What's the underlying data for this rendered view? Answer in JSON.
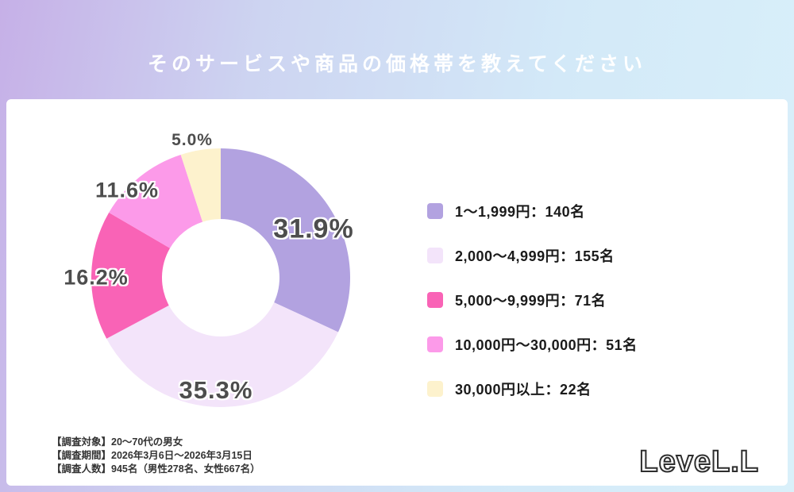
{
  "header": {
    "title": "そのサービスや商品の価格帯を教えてください"
  },
  "chart_data": {
    "type": "pie",
    "donut": true,
    "title": "そのサービスや商品の価格帯を教えてください",
    "labels": [
      "1〜1,999円",
      "2,000〜4,999円",
      "5,000〜9,999円",
      "10,000円〜30,000円",
      "30,000円以上"
    ],
    "values_pct": [
      31.9,
      35.3,
      16.2,
      11.6,
      5.0
    ],
    "counts": [
      140,
      155,
      71,
      51,
      22
    ],
    "colors": [
      "#b2a2e0",
      "#f3e4fa",
      "#f963b6",
      "#fc9ae9",
      "#fdf2cd"
    ],
    "pct_labels": [
      "31.9%",
      "35.3%",
      "16.2%",
      "11.6%",
      "5.0%"
    ],
    "start_angle_deg": -90,
    "direction": "clockwise",
    "legend_position": "right"
  },
  "legend": {
    "items": [
      {
        "label": "1〜1,999円：140名",
        "color": "#b2a2e0"
      },
      {
        "label": "2,000〜4,999円：155名",
        "color": "#f3e4fa"
      },
      {
        "label": "5,000〜9,999円：71名",
        "color": "#f963b6"
      },
      {
        "label": "10,000円〜30,000円：51名",
        "color": "#fc9ae9"
      },
      {
        "label": "30,000円以上：22名",
        "color": "#fdf2cd"
      }
    ]
  },
  "footer": {
    "lines": [
      "【調査対象】20〜70代の男女",
      "【調査期間】2026年3月6日〜2026年3月15日",
      "【調査人数】945名（男性278名、女性667名）"
    ],
    "logo": "LeveL.L"
  }
}
